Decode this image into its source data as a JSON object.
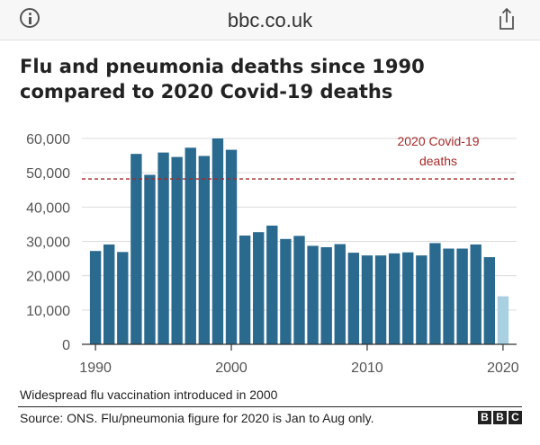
{
  "browser": {
    "url": "bbc.co.uk"
  },
  "chart_data": {
    "type": "bar",
    "title": "Flu and pneumonia deaths since 1990 compared to 2020 Covid-19 deaths",
    "xlabel": "",
    "ylabel": "",
    "x": [
      1990,
      1991,
      1992,
      1993,
      1994,
      1995,
      1996,
      1997,
      1998,
      1999,
      2000,
      2001,
      2002,
      2003,
      2004,
      2005,
      2006,
      2007,
      2008,
      2009,
      2010,
      2011,
      2012,
      2013,
      2014,
      2015,
      2016,
      2017,
      2018,
      2019,
      2020
    ],
    "values": [
      27200,
      29100,
      26900,
      55500,
      49400,
      55900,
      54600,
      57300,
      54900,
      60000,
      56700,
      31700,
      32700,
      34600,
      30700,
      31600,
      28700,
      28300,
      29200,
      26700,
      25900,
      25900,
      26500,
      26800,
      25900,
      29500,
      27900,
      27900,
      29100,
      25400,
      14000
    ],
    "highlight_color": "#a8d0e0",
    "bar_color": "#2b6a8f",
    "xticks": [
      1990,
      2000,
      2010,
      2020
    ],
    "yticks": [
      0,
      10000,
      20000,
      30000,
      40000,
      50000,
      60000
    ],
    "ytick_labels": [
      "0",
      "10,000",
      "20,000",
      "30,000",
      "40,000",
      "50,000",
      "60,000"
    ],
    "ylim": [
      0,
      60000
    ],
    "xlim": [
      1989,
      2021
    ],
    "grid": true,
    "reference_line": {
      "value": 48200,
      "label_line1": "2020 Covid-19",
      "label_line2": "deaths",
      "color": "#a52828"
    }
  },
  "note": "Widespread flu vaccination introduced in 2000",
  "source": "Source: ONS. Flu/pneumonia figure for 2020 is Jan to Aug only.",
  "logo": {
    "letters": [
      "B",
      "B",
      "C"
    ]
  }
}
